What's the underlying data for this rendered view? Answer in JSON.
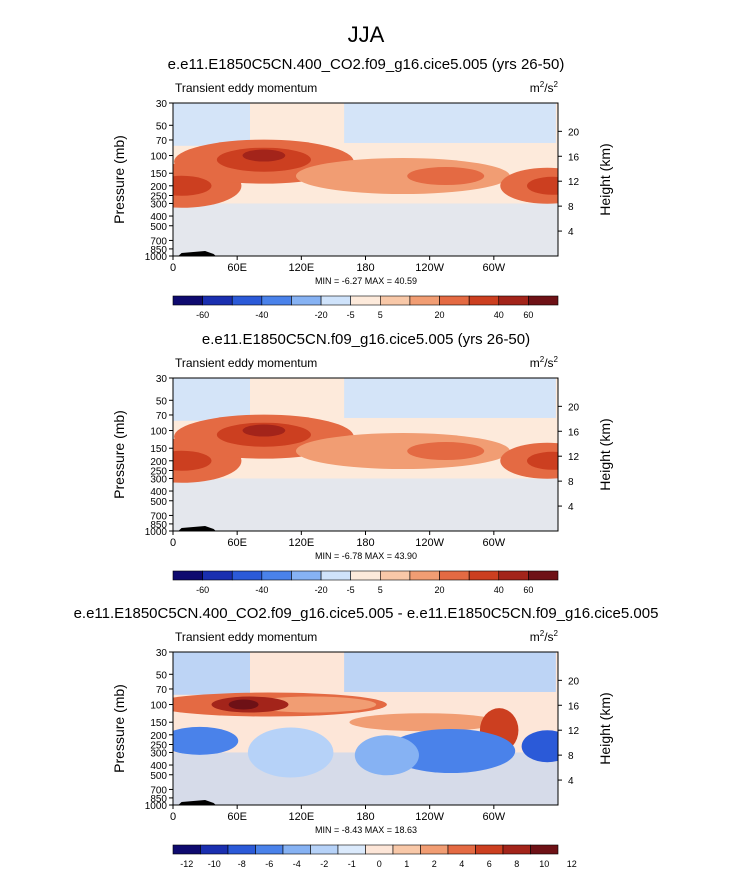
{
  "main_title": "JJA",
  "colors": {
    "abs_scale": [
      "#0f0a6f",
      "#1a2fb0",
      "#2b5ad8",
      "#4a82ea",
      "#86b2f3",
      "#cfe3fb",
      "#fdeadb",
      "#f8c8a8",
      "#f19d73",
      "#e46a43",
      "#cc3f20",
      "#a3241a",
      "#6e1116"
    ],
    "diff_scale": [
      "#0f0a6f",
      "#1a2fb0",
      "#2b5ad8",
      "#4a82ea",
      "#86b2f3",
      "#b6d2f8",
      "#dbeafc",
      "#fde6d8",
      "#f8c8a8",
      "#f19d73",
      "#e46a43",
      "#cc3f20",
      "#a3241a",
      "#6e1116"
    ]
  },
  "chart_data": [
    {
      "type": "contour",
      "title": "e.e11.E1850C5CN.400_CO2.f09_g16.cice5.005 (yrs 26-50)",
      "left_label": "Transient eddy momentum",
      "units_base": "m",
      "units_sup1": "2",
      "units_mid": "/s",
      "units_sup2": "2",
      "ylabel": "Pressure (mb)",
      "ylabel_right": "Height (km)",
      "x_ticks": [
        "0",
        "60E",
        "120E",
        "180",
        "120W",
        "60W"
      ],
      "y_ticks": [
        "30",
        "50",
        "70",
        "100",
        "150",
        "200",
        "250",
        "300",
        "400",
        "500",
        "700",
        "850",
        "1000"
      ],
      "right_ticks": [
        "20",
        "16",
        "12",
        "8",
        "4"
      ],
      "min_max": "MIN = -6.27  MAX = 40.59",
      "colorbar_labels": [
        "-60",
        "-40",
        "-20",
        "-5",
        "5",
        "20",
        "40",
        "60"
      ]
    },
    {
      "type": "contour",
      "title": "e.e11.E1850C5CN.f09_g16.cice5.005 (yrs 26-50)",
      "left_label": "Transient eddy momentum",
      "units_base": "m",
      "units_sup1": "2",
      "units_mid": "/s",
      "units_sup2": "2",
      "ylabel": "Pressure (mb)",
      "ylabel_right": "Height (km)",
      "x_ticks": [
        "0",
        "60E",
        "120E",
        "180",
        "120W",
        "60W"
      ],
      "y_ticks": [
        "30",
        "50",
        "70",
        "100",
        "150",
        "200",
        "250",
        "300",
        "400",
        "500",
        "700",
        "850",
        "1000"
      ],
      "right_ticks": [
        "20",
        "16",
        "12",
        "8",
        "4"
      ],
      "min_max": "MIN = -6.78  MAX = 43.90",
      "colorbar_labels": [
        "-60",
        "-40",
        "-20",
        "-5",
        "5",
        "20",
        "40",
        "60"
      ]
    },
    {
      "type": "contour",
      "title": "e.e11.E1850C5CN.400_CO2.f09_g16.cice5.005 - e.e11.E1850C5CN.f09_g16.cice5.005",
      "left_label": "Transient eddy momentum",
      "units_base": "m",
      "units_sup1": "2",
      "units_mid": "/s",
      "units_sup2": "2",
      "ylabel": "Pressure (mb)",
      "ylabel_right": "Height (km)",
      "x_ticks": [
        "0",
        "60E",
        "120E",
        "180",
        "120W",
        "60W"
      ],
      "y_ticks": [
        "30",
        "50",
        "70",
        "100",
        "150",
        "200",
        "250",
        "300",
        "400",
        "500",
        "700",
        "850",
        "1000"
      ],
      "right_ticks": [
        "20",
        "16",
        "12",
        "8",
        "4"
      ],
      "min_max": "MIN = -8.43  MAX = 18.63",
      "colorbar_labels": [
        "-12",
        "-10",
        "-8",
        "-6",
        "-4",
        "-2",
        "-1",
        "0",
        "1",
        "2",
        "4",
        "6",
        "8",
        "10",
        "12"
      ]
    }
  ]
}
